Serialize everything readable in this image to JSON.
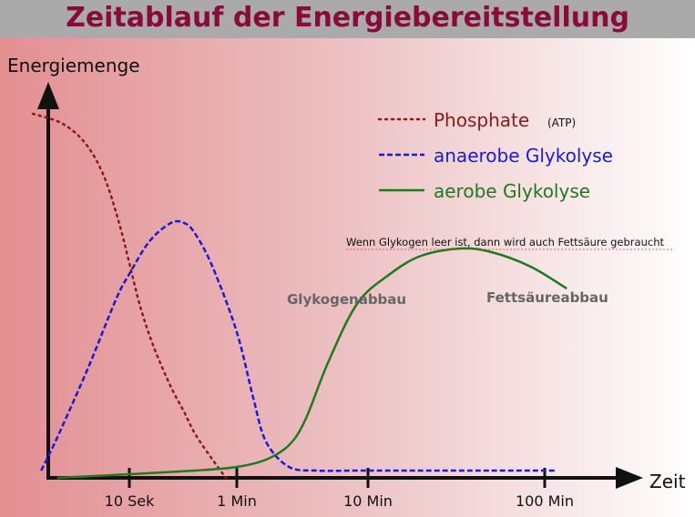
{
  "title": "Zeitablauf der Energiebereitstellung",
  "colors": {
    "title": "#8a0b3a",
    "phosphate": "#8b1a1a",
    "anaerobic": "#1a1adb",
    "aerobic": "#1e7a1e",
    "axis": "#111111"
  },
  "chart_data": {
    "type": "line",
    "ylabel": "Energiemenge",
    "xlabel": "Zeit",
    "x_scale": "log",
    "x_ticks": [
      "10 Sek",
      "1 Min",
      "10 Min",
      "100 Min"
    ],
    "x_tick_values": [
      10,
      60,
      600,
      6000
    ],
    "xlim": [
      2,
      9000
    ],
    "ylim": [
      0,
      100
    ],
    "legend_position": "top-right",
    "series": [
      {
        "name": "Phosphate",
        "name_suffix": "(ATP)",
        "style": "dotted",
        "color": "#8b1a1a",
        "x": [
          2,
          3,
          4,
          5,
          6,
          7,
          8,
          9,
          10,
          12,
          15,
          20,
          25,
          30,
          40,
          50
        ],
        "y": [
          100,
          98,
          95,
          91,
          86,
          80,
          73,
          66,
          59,
          47,
          36,
          25,
          18,
          12,
          5,
          0
        ]
      },
      {
        "name": "anaerobe Glykolyse",
        "style": "dashed",
        "color": "#1a1adb",
        "x": [
          2.3,
          3,
          5,
          8,
          10,
          14,
          20,
          25,
          30,
          40,
          60,
          80,
          100,
          150,
          250,
          500,
          1000,
          3000,
          7000
        ],
        "y": [
          2,
          11,
          30,
          49,
          56,
          65,
          70,
          70,
          67,
          58,
          40,
          22,
          10,
          3,
          2,
          2,
          2,
          2,
          2
        ]
      },
      {
        "name": "aerobe Glykolyse",
        "style": "solid",
        "color": "#1e7a1e",
        "x": [
          3,
          10,
          30,
          60,
          100,
          150,
          200,
          300,
          500,
          800,
          1200,
          2000,
          3000,
          5000,
          8000
        ],
        "y": [
          0,
          1,
          2,
          3,
          5,
          9,
          16,
          32,
          48,
          56,
          61,
          63,
          62,
          58,
          52
        ]
      }
    ],
    "annotations": [
      "Glykogenabbau",
      "Fettsäureabbau",
      "Wenn Glykogen leer ist, dann wird auch Fettsäure gebraucht"
    ]
  }
}
